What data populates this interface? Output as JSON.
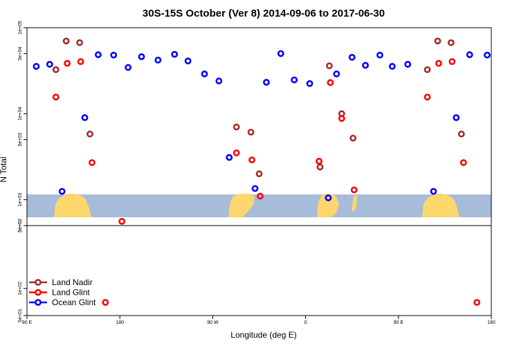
{
  "chart_data": {
    "type": "scatter",
    "title": "30S-15S October (Ver 8)   2014-09-06 to 2017-06-30",
    "xlabel": "Longitude (deg E)",
    "ylabel": "N Total",
    "y_scale": "log",
    "x_ticks": [
      {
        "value": 90,
        "label": "90 E"
      },
      {
        "value": 180,
        "label": "180"
      },
      {
        "value": 270,
        "label": "90 W"
      },
      {
        "value": 360,
        "label": "0"
      },
      {
        "value": 450,
        "label": "90 E"
      },
      {
        "value": 540,
        "label": "180"
      }
    ],
    "upper_panel": {
      "ylim": [
        500,
        100000
      ],
      "y_ticks": [
        {
          "value": 100000,
          "label": "1e+05"
        },
        {
          "value": 50000,
          "label": "5e+04"
        },
        {
          "value": 10000,
          "label": "1e+04"
        },
        {
          "value": 5000,
          "label": "5e+03"
        },
        {
          "value": 1000,
          "label": "1e+03"
        },
        {
          "value": 500,
          "label": "5e+02"
        }
      ]
    },
    "lower_panel": {
      "ylim": [
        50,
        500
      ],
      "y_ticks": [
        {
          "value": 500,
          "label": "5e+02"
        },
        {
          "value": 100,
          "label": "1e+02"
        },
        {
          "value": 50,
          "label": "5e+01"
        }
      ]
    },
    "legend_position": "bottom-left",
    "series": [
      {
        "name": "Land Nadir",
        "color": "#a52a2a",
        "points": [
          {
            "x": 118,
            "y": 32500
          },
          {
            "x": 128,
            "y": 70000
          },
          {
            "x": 141,
            "y": 67000
          },
          {
            "x": 151,
            "y": 5800
          },
          {
            "x": 293,
            "y": 7000
          },
          {
            "x": 307,
            "y": 6100
          },
          {
            "x": 315,
            "y": 2000
          },
          {
            "x": 374,
            "y": 2400
          },
          {
            "x": 383,
            "y": 36000
          },
          {
            "x": 395,
            "y": 10000
          },
          {
            "x": 406,
            "y": 5200
          },
          {
            "x": 478,
            "y": 32500
          },
          {
            "x": 488,
            "y": 70000
          },
          {
            "x": 501,
            "y": 67000
          },
          {
            "x": 511,
            "y": 5800
          }
        ]
      },
      {
        "name": "Land Glint",
        "color": "#ff0000",
        "points": [
          {
            "x": 118,
            "y": 15600
          },
          {
            "x": 129,
            "y": 38500
          },
          {
            "x": 142,
            "y": 40300
          },
          {
            "x": 153,
            "y": 2700
          },
          {
            "x": 182,
            "y": 560
          },
          {
            "x": 293,
            "y": 3500
          },
          {
            "x": 308,
            "y": 2900
          },
          {
            "x": 316,
            "y": 1100
          },
          {
            "x": 373,
            "y": 2800
          },
          {
            "x": 384,
            "y": 23000
          },
          {
            "x": 395,
            "y": 8800
          },
          {
            "x": 407,
            "y": 1300
          },
          {
            "x": 478,
            "y": 15600
          },
          {
            "x": 489,
            "y": 38500
          },
          {
            "x": 502,
            "y": 40300
          },
          {
            "x": 513,
            "y": 2700
          },
          {
            "x": 166,
            "y": 70
          },
          {
            "x": 526,
            "y": 70
          }
        ]
      },
      {
        "name": "Ocean Glint",
        "color": "#0000ff",
        "points": [
          {
            "x": 99,
            "y": 35500
          },
          {
            "x": 112,
            "y": 37500
          },
          {
            "x": 124,
            "y": 1250
          },
          {
            "x": 146,
            "y": 9000
          },
          {
            "x": 159,
            "y": 48500
          },
          {
            "x": 174,
            "y": 48000
          },
          {
            "x": 188,
            "y": 34500
          },
          {
            "x": 201,
            "y": 46000
          },
          {
            "x": 217,
            "y": 42000
          },
          {
            "x": 233,
            "y": 49000
          },
          {
            "x": 246,
            "y": 41000
          },
          {
            "x": 262,
            "y": 29000
          },
          {
            "x": 276,
            "y": 24000
          },
          {
            "x": 286,
            "y": 3100
          },
          {
            "x": 311,
            "y": 1350
          },
          {
            "x": 322,
            "y": 23200
          },
          {
            "x": 336,
            "y": 50000
          },
          {
            "x": 349,
            "y": 24700
          },
          {
            "x": 364,
            "y": 22400
          },
          {
            "x": 382,
            "y": 1050
          },
          {
            "x": 390,
            "y": 29000
          },
          {
            "x": 405,
            "y": 45300
          },
          {
            "x": 418,
            "y": 36500
          },
          {
            "x": 432,
            "y": 48000
          },
          {
            "x": 444,
            "y": 35500
          },
          {
            "x": 459,
            "y": 37500
          },
          {
            "x": 484,
            "y": 1250
          },
          {
            "x": 506,
            "y": 9000
          },
          {
            "x": 519,
            "y": 48500
          },
          {
            "x": 536,
            "y": 48000
          }
        ]
      }
    ]
  }
}
